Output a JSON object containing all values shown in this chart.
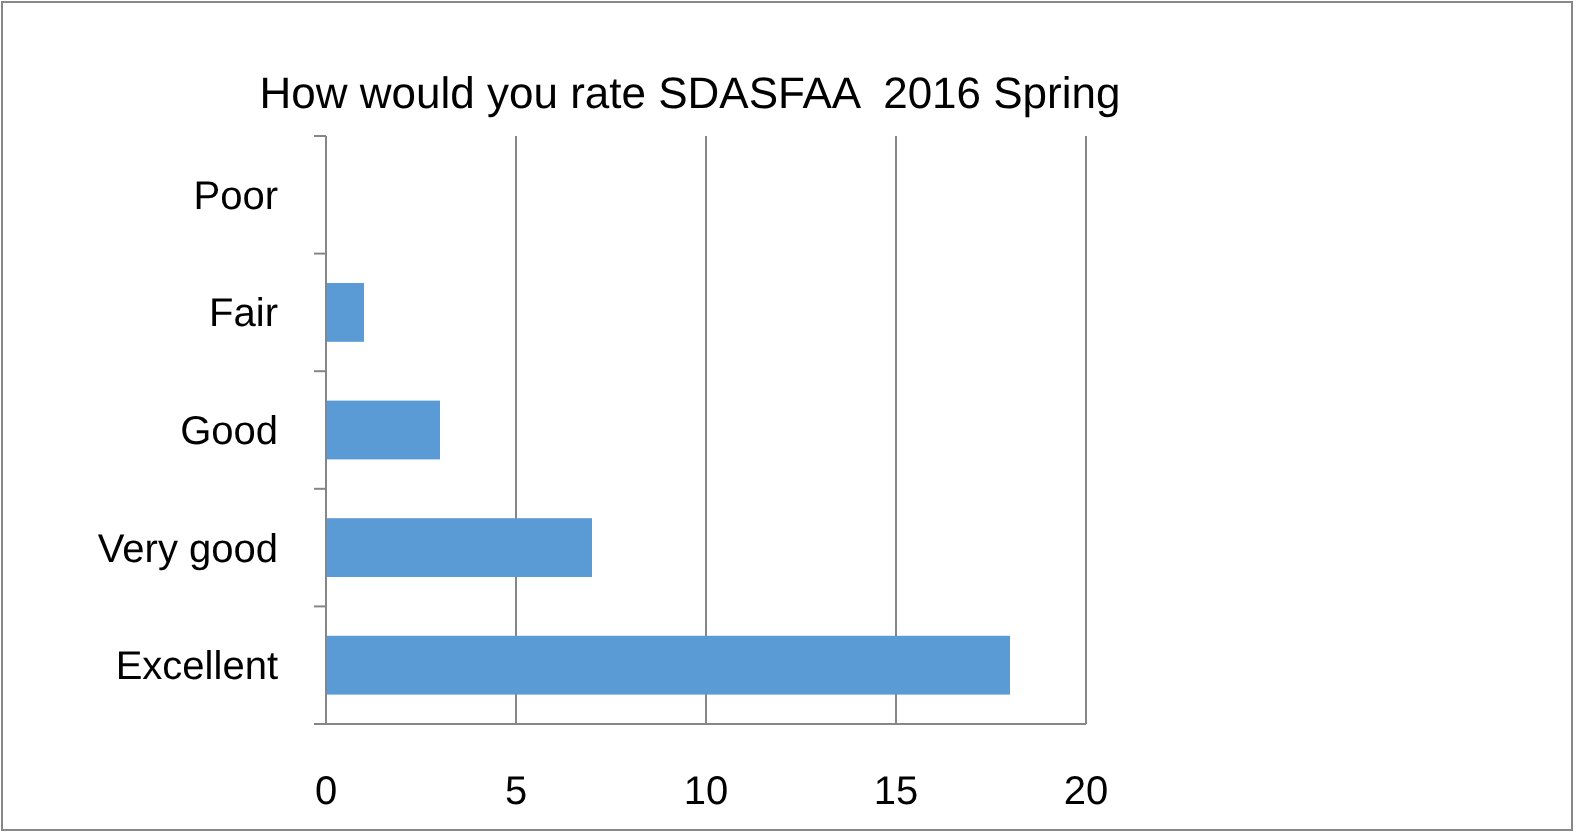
{
  "chart_data": {
    "type": "bar",
    "orientation": "horizontal",
    "title": "How would you rate SDASFAA  2016 Spring",
    "categories": [
      "Poor",
      "Fair",
      "Good",
      "Very good",
      "Excellent"
    ],
    "values": [
      0,
      1,
      3,
      7,
      18
    ],
    "color": "#5b9bd5",
    "xlim": [
      0,
      20
    ],
    "xticks": [
      0,
      5,
      10,
      15,
      20
    ],
    "grid": "x"
  }
}
